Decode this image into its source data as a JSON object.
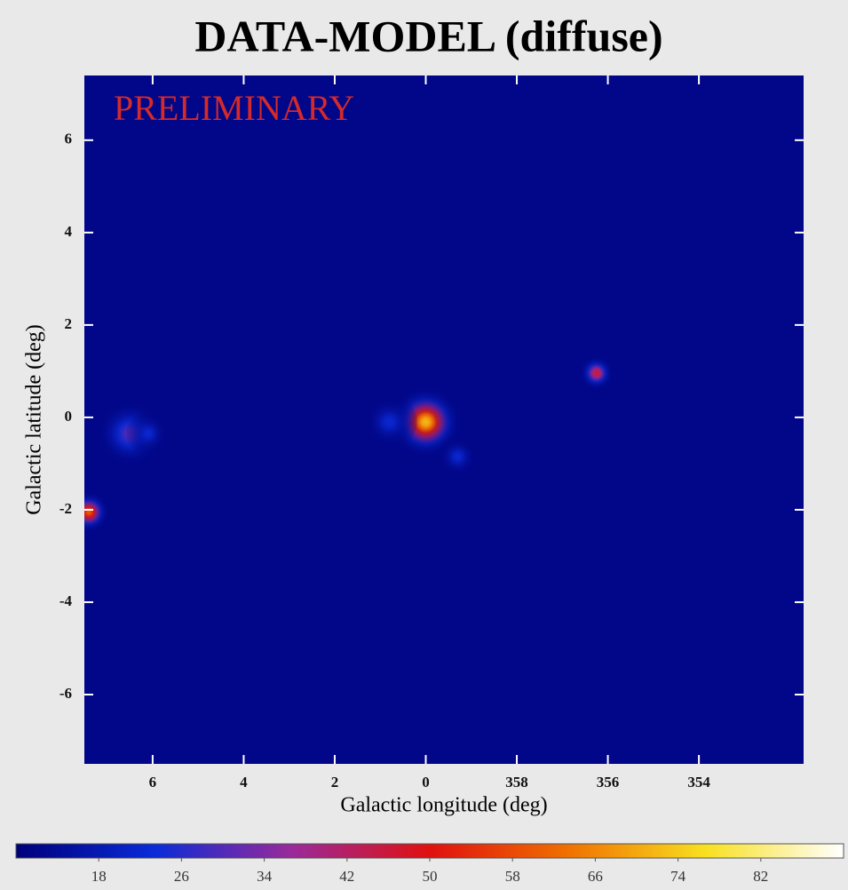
{
  "chart_data": {
    "type": "heatmap",
    "title": "DATA-MODEL (diffuse)",
    "annotation": "PRELIMINARY",
    "xlabel": "Galactic longitude (deg)",
    "ylabel": "Galactic latitude (deg)",
    "xlim": [
      7.5,
      -8.3
    ],
    "ylim": [
      -7.5,
      7.4
    ],
    "xticks": [
      6,
      4,
      2,
      0,
      {
        "value": -2,
        "label": "358"
      },
      {
        "value": -4,
        "label": "356"
      },
      {
        "value": -6,
        "label": "354"
      }
    ],
    "yticks": [
      6,
      4,
      2,
      0,
      -2,
      -4,
      -6
    ],
    "background": 12,
    "sources": [
      {
        "l": 0,
        "b": -0.1,
        "peak": 72,
        "width": 0.6
      },
      {
        "l": 0.8,
        "b": -0.1,
        "peak": 22,
        "width": 0.45
      },
      {
        "l": -0.7,
        "b": -0.85,
        "peak": 22,
        "width": 0.35
      },
      {
        "l": -3.75,
        "b": 0.96,
        "peak": 46,
        "width": 0.3
      },
      {
        "l": 7.4,
        "b": -2.05,
        "peak": 60,
        "width": 0.35
      },
      {
        "l": 6.5,
        "b": -0.35,
        "peak": 30,
        "width": 0.6
      },
      {
        "l": 6.1,
        "b": -0.35,
        "peak": 22,
        "width": 0.35
      }
    ],
    "colormap": [
      "#00007a",
      "#0a2bd8",
      "#9a2a9a",
      "#e01010",
      "#f07000",
      "#f8e020",
      "#ffffff"
    ],
    "clim": [
      10,
      90
    ],
    "cticks": [
      18,
      26,
      34,
      42,
      50,
      58,
      66,
      74,
      82
    ]
  }
}
